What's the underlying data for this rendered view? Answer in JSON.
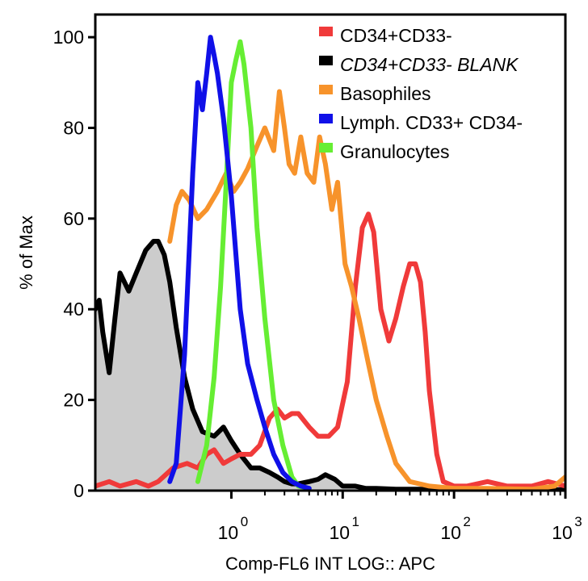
{
  "chart_data": {
    "type": "line",
    "title": "",
    "xlabel": "Comp-FL6 INT LOG:: APC",
    "ylabel": "% of Max",
    "x_scale": "log",
    "xlim": [
      0.06,
      1000
    ],
    "ylim": [
      0,
      105
    ],
    "x_ticks": [
      {
        "value": 1,
        "base": "10",
        "exp": "0"
      },
      {
        "value": 10,
        "base": "10",
        "exp": "1"
      },
      {
        "value": 100,
        "base": "10",
        "exp": "2"
      },
      {
        "value": 1000,
        "base": "10",
        "exp": "3"
      }
    ],
    "y_ticks": [
      "0",
      "20",
      "40",
      "60",
      "80",
      "100"
    ],
    "legend_position": "top-right",
    "series": [
      {
        "name": "CD34+CD33-",
        "color": "#f03a3a",
        "italic": false,
        "filled": false,
        "x": [
          0.06,
          0.08,
          0.1,
          0.14,
          0.18,
          0.22,
          0.3,
          0.4,
          0.5,
          0.6,
          0.7,
          0.85,
          1.0,
          1.2,
          1.5,
          1.8,
          2.2,
          2.6,
          3.0,
          3.5,
          4.0,
          5.0,
          6.0,
          7.5,
          9.0,
          11,
          13,
          15,
          17,
          19,
          22,
          26,
          30,
          35,
          40,
          45,
          50,
          55,
          60,
          70,
          80,
          100,
          130,
          200,
          300,
          500,
          700,
          1000
        ],
        "y": [
          1,
          2,
          1,
          2,
          1,
          2,
          5,
          6,
          5,
          8,
          9,
          6,
          7,
          8,
          8,
          10,
          16,
          18,
          16,
          17,
          17,
          14,
          12,
          12,
          14,
          24,
          45,
          58,
          61,
          57,
          40,
          33,
          38,
          45,
          50,
          50,
          46,
          35,
          22,
          8,
          2,
          1,
          1,
          2,
          1,
          1,
          2,
          1
        ]
      },
      {
        "name": "CD34+CD33- BLANK",
        "color": "#000000",
        "italic": true,
        "filled": true,
        "fill": "#cccccc",
        "x": [
          0.06,
          0.065,
          0.07,
          0.08,
          0.09,
          0.1,
          0.12,
          0.14,
          0.17,
          0.2,
          0.22,
          0.25,
          0.28,
          0.32,
          0.38,
          0.45,
          0.55,
          0.7,
          0.85,
          1.0,
          1.2,
          1.5,
          1.8,
          2.2,
          2.6,
          3.0,
          3.5,
          4.0,
          5.0,
          6.0,
          7.0,
          8.5,
          10,
          13,
          16,
          20,
          30,
          50,
          100,
          200,
          500,
          1000
        ],
        "y": [
          40,
          42,
          35,
          26,
          38,
          48,
          44,
          48,
          53,
          55,
          55,
          52,
          46,
          36,
          25,
          18,
          13,
          12,
          14,
          11,
          8,
          5,
          5,
          4,
          3,
          2,
          1.5,
          1.5,
          2,
          2.5,
          3.5,
          2.5,
          1,
          1,
          0.5,
          0.5,
          0.3,
          0.3,
          0.2,
          0.2,
          0.2,
          0.2
        ]
      },
      {
        "name": "Basophiles",
        "color": "#f7932b",
        "italic": false,
        "filled": false,
        "x": [
          0.28,
          0.32,
          0.36,
          0.42,
          0.5,
          0.6,
          0.75,
          0.9,
          1.05,
          1.2,
          1.4,
          1.7,
          2.0,
          2.4,
          2.7,
          3.0,
          3.3,
          3.7,
          4.2,
          4.8,
          5.5,
          6.2,
          7.0,
          8.0,
          9.0,
          10.5,
          12,
          14,
          17,
          20,
          25,
          30,
          40,
          60,
          100,
          200,
          500,
          800,
          1000
        ],
        "y": [
          55,
          63,
          66,
          64,
          60,
          62,
          66,
          70,
          66,
          68,
          71,
          76,
          80,
          75,
          88,
          80,
          72,
          70,
          78,
          70,
          68,
          78,
          72,
          62,
          68,
          50,
          45,
          38,
          28,
          20,
          12,
          6,
          2,
          1,
          0.5,
          0.5,
          0.3,
          1,
          3
        ]
      },
      {
        "name": "Lymph. CD33+ CD34-",
        "color": "#1010e8",
        "italic": false,
        "filled": false,
        "x": [
          0.28,
          0.32,
          0.38,
          0.45,
          0.5,
          0.55,
          0.6,
          0.65,
          0.7,
          0.75,
          0.85,
          1.0,
          1.2,
          1.4,
          1.7,
          2.0,
          2.4,
          2.9,
          3.5,
          4.2,
          5.0
        ],
        "y": [
          2,
          6,
          30,
          70,
          90,
          84,
          92,
          100,
          96,
          92,
          82,
          65,
          40,
          28,
          20,
          14,
          8,
          4,
          2,
          1,
          0.5
        ]
      },
      {
        "name": "Granulocytes",
        "color": "#66ee33",
        "italic": false,
        "filled": false,
        "x": [
          0.5,
          0.6,
          0.7,
          0.8,
          0.9,
          1.0,
          1.1,
          1.2,
          1.3,
          1.5,
          1.7,
          2.0,
          2.4,
          2.9,
          3.5,
          4.0,
          5.0
        ],
        "y": [
          2,
          10,
          25,
          45,
          68,
          90,
          95,
          99,
          94,
          80,
          58,
          38,
          20,
          10,
          3,
          1,
          0.5
        ]
      }
    ]
  }
}
